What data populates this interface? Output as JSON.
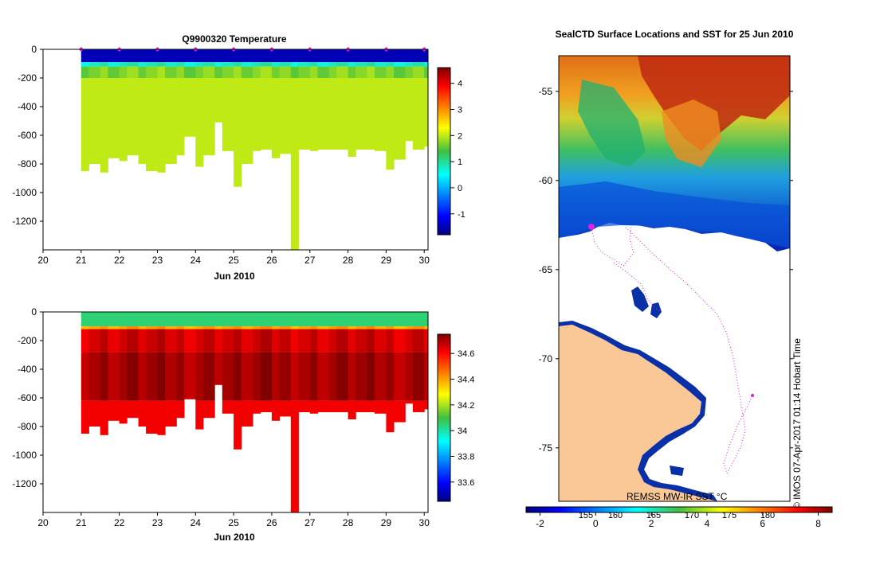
{
  "chart_data": [
    {
      "type": "heatmap",
      "title": "Q9900320  Temperature",
      "xlabel": "Jun 2010",
      "ylabel": "",
      "x_ticks": [
        "20",
        "21",
        "22",
        "23",
        "24",
        "25",
        "26",
        "27",
        "28",
        "29",
        "30"
      ],
      "xlim": [
        20,
        30.1
      ],
      "y_ticks": [
        "0",
        "-200",
        "-400",
        "-600",
        "-800",
        "-1000",
        "-1200"
      ],
      "ylim": [
        -1400,
        0
      ],
      "colorbar_ticks": [
        "4",
        "3",
        "2",
        "1",
        "0",
        "-1"
      ],
      "colorbar_range": [
        -1.8,
        4.6
      ],
      "colormap": "jet",
      "surface_marker_color": "#e020e0",
      "profile_days": [
        21.0,
        21.2,
        21.5,
        21.7,
        22.0,
        22.2,
        22.5,
        22.7,
        23.0,
        23.2,
        23.5,
        23.7,
        24.0,
        24.2,
        24.5,
        24.7,
        25.0,
        25.2,
        25.5,
        25.7,
        26.0,
        26.2,
        26.5,
        26.7,
        27.0,
        27.2,
        27.5,
        27.7,
        28.0,
        28.2,
        28.5,
        28.7,
        29.0,
        29.2,
        29.5,
        29.7,
        30.0
      ],
      "max_depth_m": [
        850,
        800,
        860,
        760,
        780,
        740,
        800,
        850,
        860,
        800,
        740,
        610,
        820,
        740,
        510,
        710,
        960,
        800,
        710,
        700,
        760,
        730,
        1400,
        700,
        710,
        700,
        700,
        700,
        750,
        700,
        700,
        710,
        840,
        770,
        640,
        700,
        680
      ],
      "layers": [
        {
          "depth_top": 0,
          "depth_bottom": 90,
          "value": -1.5
        },
        {
          "depth_top": 90,
          "depth_bottom": 120,
          "value": 0.8
        },
        {
          "depth_top": 120,
          "depth_bottom": 200,
          "value": 1.7
        },
        {
          "depth_top": 200,
          "depth_bottom": 1400,
          "value": 2.0
        }
      ]
    },
    {
      "type": "heatmap",
      "title": "",
      "xlabel": "Jun 2010",
      "ylabel": "",
      "x_ticks": [
        "20",
        "21",
        "22",
        "23",
        "24",
        "25",
        "26",
        "27",
        "28",
        "29",
        "30"
      ],
      "xlim": [
        20,
        30.1
      ],
      "y_ticks": [
        "0",
        "-200",
        "-400",
        "-600",
        "-800",
        "-1000",
        "-1200"
      ],
      "ylim": [
        -1400,
        0
      ],
      "colorbar_ticks": [
        "34.6",
        "34.4",
        "34.2",
        "34",
        "33.8",
        "33.6"
      ],
      "colorbar_range": [
        33.45,
        34.75
      ],
      "colormap": "jet",
      "layers": [
        {
          "depth_top": 0,
          "depth_bottom": 100,
          "value": 34.05
        },
        {
          "depth_top": 100,
          "depth_bottom": 120,
          "value": 34.4
        },
        {
          "depth_top": 120,
          "depth_bottom": 280,
          "value": 34.66
        },
        {
          "depth_top": 280,
          "depth_bottom": 620,
          "value": 34.71
        },
        {
          "depth_top": 620,
          "depth_bottom": 1400,
          "value": 34.62
        }
      ]
    },
    {
      "type": "heatmap",
      "title": "SealCTD Surface Locations and SST for 25 Jun 2010",
      "xlabel": "",
      "ylabel": "",
      "y_ticks": [
        "-55",
        "-60",
        "-65",
        "-70",
        "-75"
      ],
      "ylim": [
        -78,
        -53
      ],
      "colorbar_ticks_celsius": [
        "-2",
        "0",
        "2",
        "4",
        "6",
        "8"
      ],
      "colorbar_range_celsius": [
        -2.5,
        8.5
      ],
      "colorbar_ticks_fahrenheit": [
        "155",
        "160",
        "165",
        "170",
        "175",
        "180"
      ],
      "product_label": "REMSS MW-IR SST °C",
      "side_label": "© IMOS 07-Apr-2017 01:14 Hobart Time",
      "colors": {
        "land": "#fac896",
        "ice": "#ffffff",
        "track": "#e020e0"
      }
    }
  ]
}
